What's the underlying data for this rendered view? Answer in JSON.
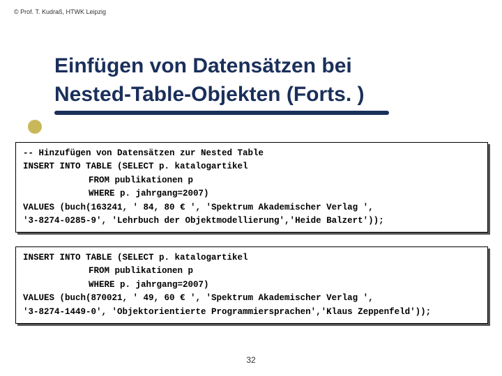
{
  "copyright": "©  Prof. T. Kudraß, HTWK Leipzig",
  "title_line1": "Einfügen von Datensätzen bei",
  "title_line2": "Nested-Table-Objekten (Forts. )",
  "accent_color": "#1a2f5a",
  "bullet_color": "#c9b85a",
  "code1": {
    "l1": "-- Hinzufügen von Datensätzen zur Nested Table",
    "l2": "INSERT INTO TABLE  (SELECT p. katalogartikel",
    "l3": "FROM publikationen p",
    "l4": "WHERE p. jahrgang=2007)",
    "l5": "VALUES (buch(163241, ' 84, 80 € ', 'Spektrum Akademischer Verlag ',",
    "l6": "'3-8274-0285-9', 'Lehrbuch der Objektmodellierung','Heide Balzert'));"
  },
  "code2": {
    "l1": "INSERT INTO TABLE  (SELECT p. katalogartikel",
    "l2": "FROM publikationen p",
    "l3": "WHERE p. jahrgang=2007)",
    "l4": "VALUES (buch(870021, ' 49, 60 € ', 'Spektrum Akademischer Verlag ',",
    "l5": "'3-8274-1449-0', 'Objektorientierte Programmiersprachen','Klaus Zeppenfeld'));"
  },
  "page_number": "32"
}
